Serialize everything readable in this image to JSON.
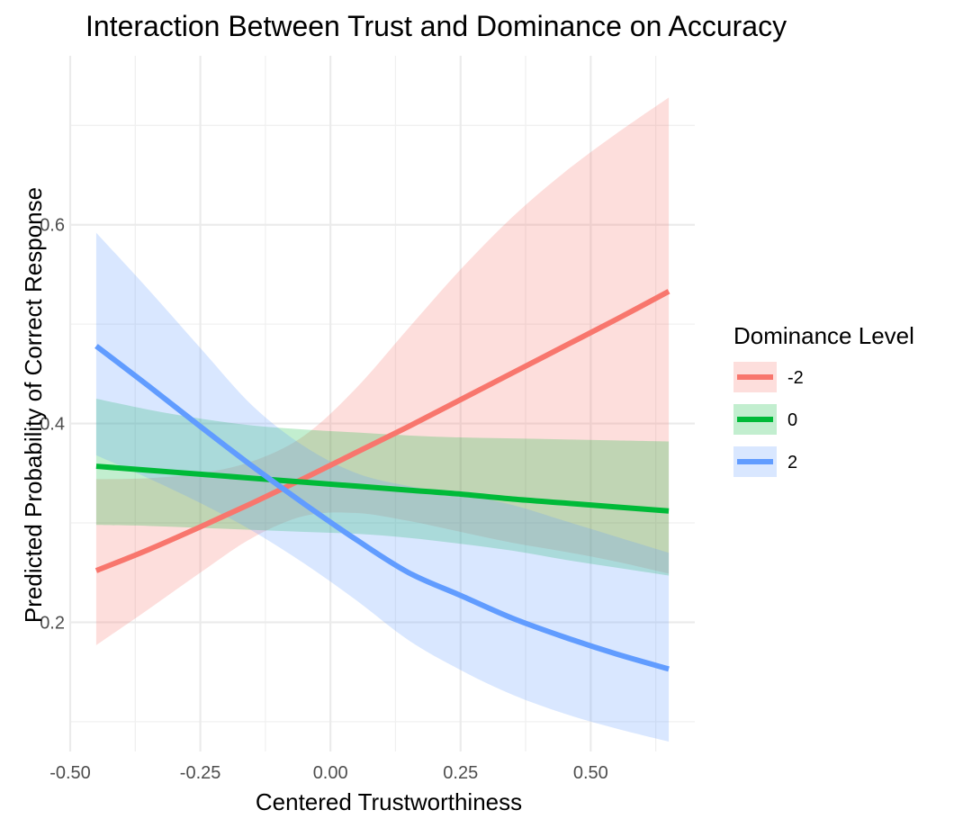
{
  "chart_data": {
    "type": "line",
    "title": "Interaction Between Trust and Dominance on Accuracy",
    "xlabel": "Centered Trustworthiness",
    "ylabel": "Predicted Probability of Correct Response",
    "xlim": [
      -0.5,
      0.7
    ],
    "ylim": [
      0.07,
      0.77
    ],
    "x_ticks": [
      -0.5,
      -0.25,
      0.0,
      0.25,
      0.5
    ],
    "x_tick_labels": [
      "-0.50",
      "-0.25",
      "0.00",
      "0.25",
      "0.50"
    ],
    "y_ticks": [
      0.2,
      0.4,
      0.6
    ],
    "y_tick_labels": [
      "0.2",
      "0.4",
      "0.6"
    ],
    "grid": true,
    "legend": {
      "title": "Dominance Level",
      "position": "right"
    },
    "series": [
      {
        "name": "-2",
        "color": "#F8766D",
        "x": [
          -0.45,
          -0.35,
          -0.25,
          -0.15,
          -0.05,
          0.05,
          0.15,
          0.25,
          0.35,
          0.45,
          0.55,
          0.65
        ],
        "y": [
          0.252,
          0.273,
          0.296,
          0.32,
          0.345,
          0.371,
          0.397,
          0.424,
          0.451,
          0.478,
          0.505,
          0.533
        ],
        "lower": [
          0.177,
          0.213,
          0.25,
          0.285,
          0.307,
          0.31,
          0.302,
          0.291,
          0.28,
          0.271,
          0.261,
          0.249
        ],
        "upper": [
          0.344,
          0.345,
          0.35,
          0.362,
          0.388,
          0.436,
          0.496,
          0.555,
          0.608,
          0.653,
          0.692,
          0.728
        ]
      },
      {
        "name": "0",
        "color": "#00BA38",
        "x": [
          -0.45,
          -0.35,
          -0.25,
          -0.15,
          -0.05,
          0.05,
          0.15,
          0.25,
          0.35,
          0.45,
          0.55,
          0.65
        ],
        "y": [
          0.357,
          0.353,
          0.349,
          0.345,
          0.341,
          0.337,
          0.333,
          0.329,
          0.324,
          0.32,
          0.316,
          0.312
        ],
        "lower": [
          0.298,
          0.297,
          0.295,
          0.293,
          0.291,
          0.289,
          0.285,
          0.279,
          0.272,
          0.263,
          0.255,
          0.247
        ],
        "upper": [
          0.425,
          0.414,
          0.405,
          0.398,
          0.394,
          0.391,
          0.388,
          0.386,
          0.385,
          0.384,
          0.383,
          0.382
        ]
      },
      {
        "name": "2",
        "color": "#619CFF",
        "x": [
          -0.45,
          -0.35,
          -0.25,
          -0.15,
          -0.05,
          0.05,
          0.15,
          0.25,
          0.35,
          0.45,
          0.55,
          0.65
        ],
        "y": [
          0.478,
          0.438,
          0.397,
          0.357,
          0.319,
          0.283,
          0.25,
          0.227,
          0.204,
          0.185,
          0.168,
          0.153
        ],
        "lower": [
          0.368,
          0.345,
          0.32,
          0.292,
          0.259,
          0.222,
          0.182,
          0.152,
          0.127,
          0.108,
          0.093,
          0.08
        ],
        "upper": [
          0.592,
          0.535,
          0.476,
          0.418,
          0.377,
          0.35,
          0.337,
          0.329,
          0.318,
          0.302,
          0.286,
          0.27
        ]
      }
    ]
  }
}
